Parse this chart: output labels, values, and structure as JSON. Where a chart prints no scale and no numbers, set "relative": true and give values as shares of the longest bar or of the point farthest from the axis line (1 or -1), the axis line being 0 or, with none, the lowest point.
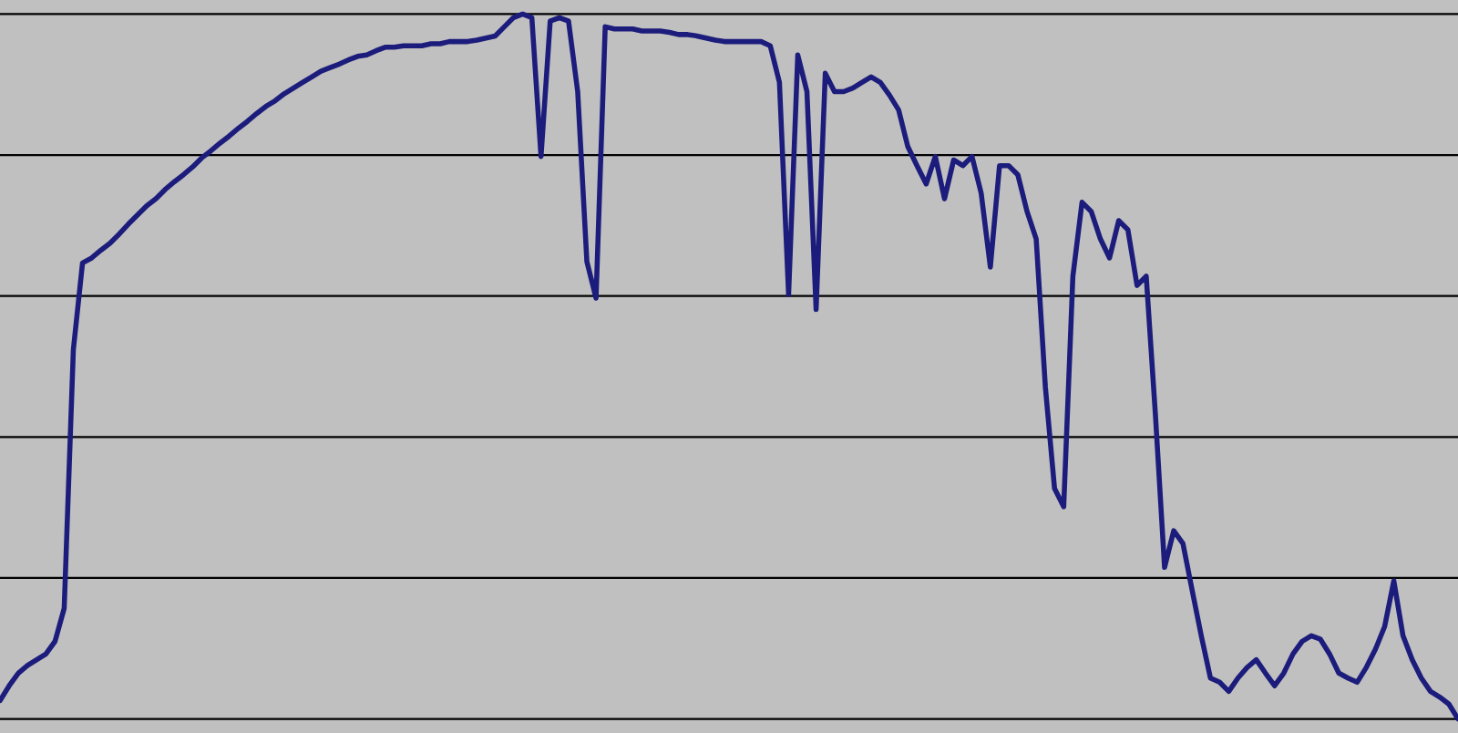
{
  "chart_data": {
    "type": "line",
    "relative": true,
    "grid": "y",
    "marker": "none",
    "line_style": "solid",
    "categories": [
      null,
      null,
      null,
      null,
      null,
      null,
      null,
      null,
      null,
      null,
      null,
      null,
      null,
      null,
      null,
      null,
      null,
      null,
      null,
      null,
      null,
      null,
      null,
      null,
      null,
      null,
      null,
      null,
      null,
      null,
      null,
      null,
      null,
      null,
      null,
      null,
      null,
      null,
      null,
      null,
      null,
      null,
      null,
      null,
      null,
      null,
      null,
      null,
      null,
      null,
      null,
      null,
      null,
      null,
      null,
      null,
      null,
      null,
      null,
      null,
      null,
      null,
      null,
      null,
      null,
      null,
      null,
      null,
      null,
      null,
      null,
      null,
      null,
      null,
      null,
      null,
      null,
      null,
      null,
      null,
      null,
      null,
      null,
      null,
      null,
      null,
      null,
      null,
      null,
      null,
      null,
      null,
      null,
      null,
      null,
      null,
      null,
      null,
      null,
      null,
      null,
      null,
      null,
      null,
      null,
      null,
      null,
      null,
      null,
      null,
      null,
      null,
      null,
      null,
      null,
      null,
      null,
      null,
      null,
      null,
      null,
      null,
      null,
      null,
      null,
      null,
      null,
      null,
      null,
      null,
      null,
      null,
      null,
      null,
      null,
      null,
      null,
      null,
      null,
      null,
      null,
      null,
      null,
      null,
      null,
      null,
      null,
      null,
      null,
      null,
      null,
      null,
      null,
      null,
      null,
      null,
      null,
      null,
      null,
      null
    ],
    "series": [
      {
        "color": "#1c1c7c",
        "values": [
          0.026,
          0.047,
          0.065,
          0.076,
          0.084,
          0.092,
          0.11,
          0.157,
          0.524,
          0.647,
          0.654,
          0.665,
          0.675,
          0.688,
          0.702,
          0.715,
          0.728,
          0.738,
          0.751,
          0.762,
          0.772,
          0.783,
          0.796,
          0.806,
          0.817,
          0.827,
          0.838,
          0.848,
          0.859,
          0.869,
          0.877,
          0.887,
          0.895,
          0.903,
          0.911,
          0.919,
          0.924,
          0.929,
          0.935,
          0.94,
          0.942,
          0.948,
          0.953,
          0.953,
          0.955,
          0.955,
          0.955,
          0.958,
          0.958,
          0.961,
          0.961,
          0.961,
          0.963,
          0.966,
          0.969,
          0.982,
          0.995,
          1,
          0.995,
          0.798,
          0.99,
          0.995,
          0.99,
          0.89,
          0.649,
          0.597,
          0.982,
          0.979,
          0.979,
          0.979,
          0.976,
          0.976,
          0.976,
          0.974,
          0.971,
          0.971,
          0.969,
          0.966,
          0.963,
          0.961,
          0.961,
          0.961,
          0.961,
          0.961,
          0.955,
          0.903,
          0.602,
          0.942,
          0.89,
          0.581,
          0.916,
          0.89,
          0.89,
          0.895,
          0.903,
          0.911,
          0.903,
          0.885,
          0.864,
          0.812,
          0.785,
          0.759,
          0.798,
          0.738,
          0.793,
          0.785,
          0.798,
          0.746,
          0.641,
          0.785,
          0.785,
          0.772,
          0.72,
          0.681,
          0.471,
          0.327,
          0.301,
          0.628,
          0.733,
          0.72,
          0.681,
          0.654,
          0.707,
          0.694,
          0.615,
          0.628,
          0.432,
          0.215,
          0.267,
          0.249,
          0.183,
          0.118,
          0.058,
          0.052,
          0.039,
          0.058,
          0.073,
          0.084,
          0.065,
          0.047,
          0.065,
          0.092,
          0.11,
          0.118,
          0.113,
          0.092,
          0.065,
          0.058,
          0.052,
          0.073,
          0.099,
          0.131,
          0.196,
          0.118,
          0.084,
          0.058,
          0.039,
          0.031,
          0.021,
          0
        ]
      }
    ]
  }
}
